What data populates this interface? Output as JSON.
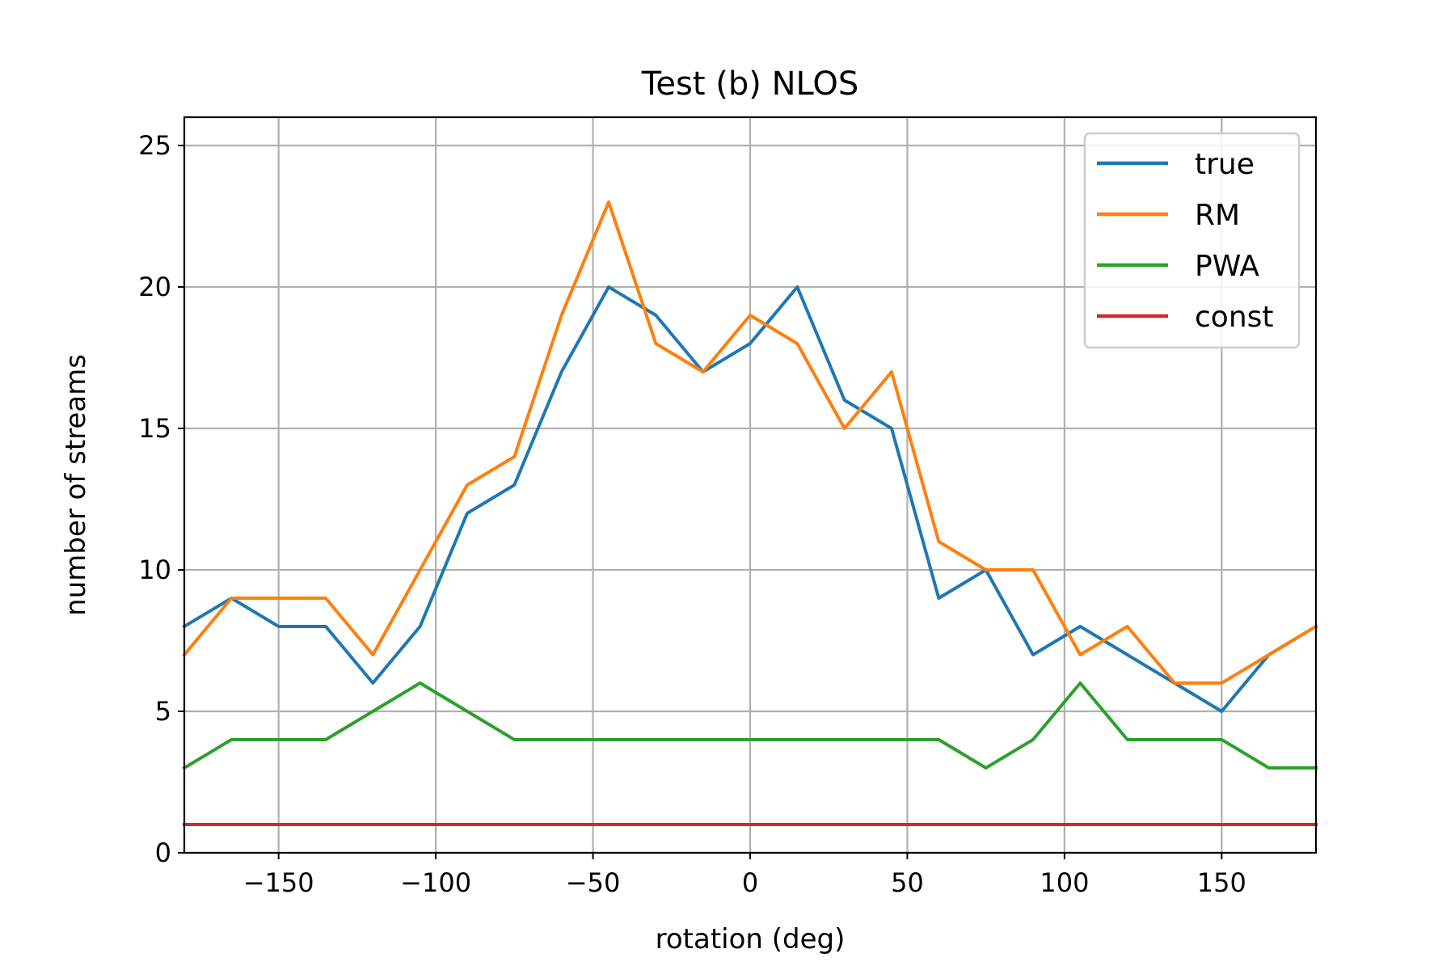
{
  "chart_data": {
    "type": "line",
    "title": "Test (b) NLOS",
    "xlabel": "rotation (deg)",
    "ylabel": "number of streams",
    "xlim": [
      -180,
      180
    ],
    "ylim": [
      0,
      26
    ],
    "xticks": [
      -150,
      -100,
      -50,
      0,
      50,
      100,
      150
    ],
    "xtick_labels": [
      "−150",
      "−100",
      "−50",
      "0",
      "50",
      "100",
      "150"
    ],
    "yticks": [
      0,
      5,
      10,
      15,
      20,
      25
    ],
    "ytick_labels": [
      "0",
      "5",
      "10",
      "15",
      "20",
      "25"
    ],
    "grid": true,
    "legend_position": "top-right",
    "x": [
      -180,
      -165,
      -150,
      -135,
      -120,
      -105,
      -90,
      -75,
      -60,
      -45,
      -30,
      -15,
      0,
      15,
      30,
      45,
      60,
      75,
      90,
      105,
      120,
      135,
      150,
      165,
      180
    ],
    "series": [
      {
        "name": "true",
        "color": "#1f77b4",
        "values": [
          8,
          9,
          8,
          8,
          6,
          8,
          12,
          13,
          17,
          20,
          19,
          17,
          18,
          20,
          16,
          15,
          9,
          10,
          7,
          8,
          7,
          6,
          5,
          7,
          8
        ]
      },
      {
        "name": "RM",
        "color": "#ff7f0e",
        "values": [
          7,
          9,
          9,
          9,
          7,
          10,
          13,
          14,
          19,
          23,
          18,
          17,
          19,
          18,
          15,
          17,
          11,
          10,
          10,
          7,
          8,
          6,
          6,
          7,
          8
        ]
      },
      {
        "name": "PWA",
        "color": "#2ca02c",
        "values": [
          3,
          4,
          4,
          4,
          5,
          6,
          5,
          4,
          4,
          4,
          4,
          4,
          4,
          4,
          4,
          4,
          4,
          3,
          4,
          6,
          4,
          4,
          4,
          3,
          3
        ]
      },
      {
        "name": "const",
        "color": "#d62728",
        "values": [
          1,
          1,
          1,
          1,
          1,
          1,
          1,
          1,
          1,
          1,
          1,
          1,
          1,
          1,
          1,
          1,
          1,
          1,
          1,
          1,
          1,
          1,
          1,
          1,
          1
        ]
      }
    ]
  }
}
